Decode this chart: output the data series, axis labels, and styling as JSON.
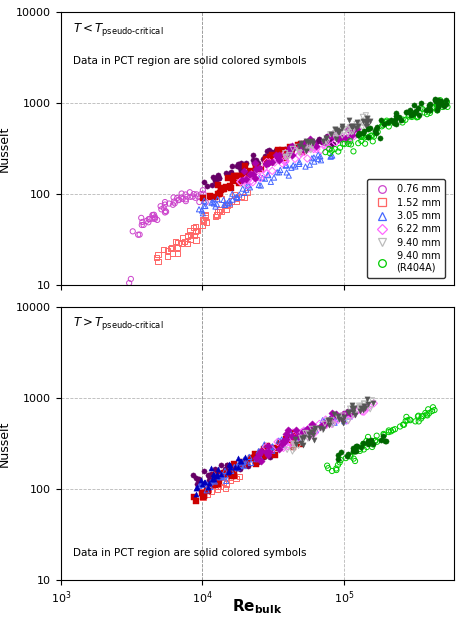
{
  "annotation_top": "Data in PCT region are solid colored symbols",
  "annotation_bottom": "Data in PCT region are solid colored symbols",
  "xlabel_base": "Re",
  "xlabel_sub": "bulk",
  "ylabel": "Nusselt",
  "xlim": [
    1000,
    600000
  ],
  "ylim": [
    10,
    10000
  ],
  "vline_x": 10000,
  "series": [
    {
      "label": "0.76 mm",
      "color_open": "#CC44CC",
      "color_solid": "#660066",
      "marker": "o",
      "top_open_re": [
        3500,
        3800,
        4000,
        4200,
        4500,
        4700,
        5000,
        5300,
        5600,
        6000,
        6500,
        7000,
        7500,
        8000,
        8500,
        9000,
        9500,
        10000,
        3200
      ],
      "top_open_nu": [
        40,
        45,
        50,
        55,
        60,
        58,
        65,
        70,
        75,
        80,
        85,
        90,
        88,
        92,
        95,
        95,
        100,
        100,
        10
      ],
      "top_solid_re": [
        11000,
        12000,
        13000,
        14000,
        15000,
        17000,
        18000,
        20000,
        22000,
        25000,
        28000,
        30000,
        35000,
        40000,
        45000,
        50000,
        55000,
        60000,
        70000,
        75000,
        80000,
        90000
      ],
      "top_solid_nu": [
        130,
        145,
        155,
        165,
        175,
        195,
        205,
        220,
        235,
        255,
        270,
        280,
        295,
        310,
        325,
        335,
        345,
        355,
        375,
        380,
        390,
        410
      ],
      "bot_open_re": [],
      "bot_open_nu": [],
      "bot_solid_re": [
        9000,
        10000,
        11000,
        12000,
        13000,
        14000,
        15000,
        16000,
        17000,
        18000,
        20000,
        22000,
        25000,
        28000,
        30000
      ],
      "bot_solid_nu": [
        120,
        130,
        140,
        150,
        155,
        160,
        165,
        170,
        175,
        180,
        195,
        205,
        220,
        235,
        240
      ]
    },
    {
      "label": "1.52 mm",
      "color_open": "#FF6666",
      "color_solid": "#CC0000",
      "marker": "s",
      "top_open_re": [
        5000,
        5500,
        6000,
        6500,
        7000,
        7500,
        8000,
        8500,
        9000,
        9500,
        10000,
        11000,
        12000,
        13000,
        14000,
        15000,
        17000,
        18000,
        20000
      ],
      "top_open_nu": [
        20,
        22,
        25,
        27,
        30,
        32,
        35,
        37,
        40,
        43,
        48,
        55,
        60,
        65,
        70,
        75,
        85,
        90,
        100
      ],
      "top_solid_re": [
        11000,
        12000,
        13000,
        14000,
        15000,
        17000,
        18000,
        20000,
        22000,
        25000,
        28000,
        30000,
        35000,
        40000,
        45000,
        50000
      ],
      "top_solid_nu": [
        90,
        100,
        110,
        120,
        130,
        145,
        155,
        170,
        185,
        205,
        225,
        240,
        270,
        295,
        315,
        335
      ],
      "bot_open_re": [
        10000,
        11000,
        12000,
        13000,
        14000,
        15000,
        17000
      ],
      "bot_open_nu": [
        90,
        100,
        110,
        115,
        120,
        130,
        140
      ],
      "bot_solid_re": [
        9000,
        10000,
        11000,
        12000,
        13000,
        14000,
        15000,
        17000,
        18000,
        20000,
        22000,
        25000,
        28000,
        30000,
        35000,
        40000,
        45000,
        50000
      ],
      "bot_solid_nu": [
        75,
        85,
        95,
        110,
        120,
        130,
        140,
        160,
        170,
        190,
        210,
        235,
        255,
        270,
        305,
        335,
        360,
        385
      ]
    },
    {
      "label": "3.05 mm",
      "color_open": "#4466FF",
      "color_solid": "#0000BB",
      "marker": "^",
      "top_open_re": [
        10000,
        11000,
        12000,
        13000,
        14000,
        15000,
        17000,
        18000,
        20000,
        22000,
        25000,
        28000,
        30000,
        35000,
        40000,
        45000,
        50000,
        55000,
        60000,
        70000,
        80000
      ],
      "top_open_nu": [
        65,
        70,
        75,
        80,
        85,
        90,
        100,
        105,
        115,
        125,
        135,
        145,
        155,
        175,
        190,
        205,
        215,
        225,
        235,
        255,
        270
      ],
      "top_solid_re": [],
      "top_solid_nu": [],
      "bot_open_re": [
        10000,
        11000,
        12000,
        13000,
        14000,
        15000,
        17000,
        18000,
        20000,
        22000,
        25000,
        28000,
        30000,
        35000,
        40000,
        45000,
        50000,
        55000,
        60000,
        70000,
        80000,
        90000,
        100000
      ],
      "bot_open_nu": [
        100,
        110,
        120,
        130,
        140,
        150,
        170,
        180,
        200,
        215,
        240,
        265,
        280,
        320,
        355,
        390,
        420,
        445,
        470,
        515,
        560,
        600,
        640
      ],
      "bot_solid_re": [
        9000,
        10000,
        11000,
        12000,
        13000,
        14000,
        15000,
        17000,
        18000,
        20000
      ],
      "bot_solid_nu": [
        100,
        110,
        120,
        135,
        145,
        155,
        165,
        185,
        195,
        215
      ]
    },
    {
      "label": "6.22 mm",
      "color_open": "#FF66FF",
      "color_solid": "#AA00AA",
      "marker": "D",
      "top_open_re": [
        18000,
        20000,
        22000,
        25000,
        28000,
        30000,
        35000,
        40000,
        45000,
        50000,
        55000,
        60000,
        70000,
        80000,
        90000,
        100000,
        110000,
        120000
      ],
      "top_open_nu": [
        130,
        145,
        155,
        165,
        185,
        200,
        230,
        260,
        280,
        290,
        305,
        315,
        335,
        355,
        375,
        395,
        415,
        435
      ],
      "top_solid_re": [
        20000,
        22000,
        25000,
        28000,
        30000,
        35000,
        40000,
        45000,
        50000,
        55000,
        60000,
        70000,
        80000,
        90000,
        100000,
        110000,
        120000
      ],
      "top_solid_nu": [
        160,
        175,
        195,
        215,
        230,
        265,
        300,
        330,
        345,
        360,
        375,
        400,
        420,
        445,
        465,
        490,
        510
      ],
      "bot_open_re": [
        30000,
        35000,
        40000,
        45000,
        50000,
        55000,
        60000,
        70000,
        80000,
        90000,
        100000,
        110000,
        120000,
        130000,
        140000,
        150000
      ],
      "bot_open_nu": [
        260,
        290,
        320,
        350,
        390,
        410,
        440,
        490,
        540,
        580,
        620,
        655,
        695,
        730,
        765,
        800
      ],
      "bot_solid_re": [
        25000,
        28000,
        30000,
        35000,
        40000,
        45000,
        50000,
        55000,
        60000,
        70000,
        80000,
        90000,
        100000
      ],
      "bot_solid_nu": [
        230,
        255,
        275,
        315,
        355,
        390,
        425,
        450,
        475,
        530,
        580,
        630,
        675
      ]
    },
    {
      "label": "9.40 mm",
      "color_open": "#BBBBBB",
      "color_solid": "#555555",
      "marker": "v",
      "top_open_re": [
        40000,
        45000,
        50000,
        55000,
        60000,
        70000,
        80000,
        90000,
        100000,
        110000,
        120000,
        130000,
        140000,
        150000
      ],
      "top_open_nu": [
        255,
        280,
        305,
        325,
        345,
        380,
        415,
        450,
        480,
        510,
        540,
        570,
        600,
        630
      ],
      "top_solid_re": [
        50000,
        55000,
        60000,
        70000,
        80000,
        90000,
        100000,
        110000,
        120000,
        130000,
        140000,
        150000
      ],
      "top_solid_nu": [
        325,
        345,
        365,
        405,
        445,
        480,
        510,
        545,
        575,
        605,
        635,
        665
      ],
      "bot_open_re": [
        40000,
        45000,
        50000,
        55000,
        60000,
        70000,
        80000,
        90000,
        100000,
        110000,
        120000,
        130000,
        140000,
        150000
      ],
      "bot_open_nu": [
        280,
        315,
        350,
        385,
        420,
        475,
        530,
        580,
        630,
        680,
        730,
        775,
        815,
        860
      ],
      "bot_solid_re": [
        45000,
        50000,
        55000,
        60000,
        70000,
        80000,
        90000,
        100000,
        110000,
        120000,
        130000,
        140000,
        150000
      ],
      "bot_solid_nu": [
        315,
        350,
        385,
        420,
        475,
        530,
        580,
        630,
        680,
        730,
        775,
        815,
        860
      ]
    },
    {
      "label": "9.40 mm\n(R404A)",
      "color_open": "#00CC00",
      "color_solid": "#006600",
      "marker": "o",
      "top_open_re": [
        80000,
        90000,
        100000,
        110000,
        120000,
        130000,
        140000,
        150000,
        160000,
        180000,
        200000,
        220000,
        250000,
        280000,
        300000,
        320000,
        350000,
        400000,
        420000,
        450000,
        480000,
        500000
      ],
      "top_open_nu": [
        280,
        310,
        340,
        370,
        395,
        415,
        435,
        460,
        485,
        530,
        575,
        610,
        660,
        710,
        740,
        770,
        805,
        860,
        880,
        910,
        945,
        975
      ],
      "top_solid_re": [
        130000,
        140000,
        150000,
        160000,
        180000,
        200000,
        220000,
        250000,
        280000,
        300000,
        320000,
        350000,
        380000,
        400000,
        430000,
        450000,
        480000,
        500000
      ],
      "top_solid_nu": [
        430,
        460,
        490,
        520,
        575,
        625,
        665,
        715,
        765,
        800,
        835,
        880,
        920,
        950,
        990,
        1020,
        1060,
        1100
      ],
      "bot_open_re": [
        80000,
        90000,
        100000,
        110000,
        120000,
        130000,
        140000,
        150000,
        160000,
        180000,
        200000,
        220000,
        250000,
        280000,
        300000,
        320000,
        350000,
        380000,
        400000,
        430000
      ],
      "bot_open_nu": [
        165,
        185,
        205,
        225,
        245,
        265,
        285,
        300,
        320,
        355,
        390,
        425,
        475,
        520,
        555,
        590,
        635,
        680,
        720,
        760
      ],
      "bot_solid_re": [
        100000,
        110000,
        120000,
        130000,
        140000,
        150000,
        160000,
        180000
      ],
      "bot_solid_nu": [
        230,
        250,
        270,
        285,
        300,
        315,
        330,
        360
      ]
    }
  ],
  "legend_labels": [
    "0.76 mm",
    "1.52 mm",
    "3.05 mm",
    "6.22 mm",
    "9.40 mm",
    "9.40 mm\n(R404A)"
  ],
  "legend_colors": [
    "#CC44CC",
    "#FF6666",
    "#4466FF",
    "#FF66FF",
    "#BBBBBB",
    "#00CC00"
  ],
  "legend_markers": [
    "o",
    "s",
    "^",
    "D",
    "v",
    "o"
  ],
  "background_color": "#FFFFFF",
  "grid_color": "#999999",
  "figsize": [
    4.68,
    6.17
  ],
  "dpi": 100
}
